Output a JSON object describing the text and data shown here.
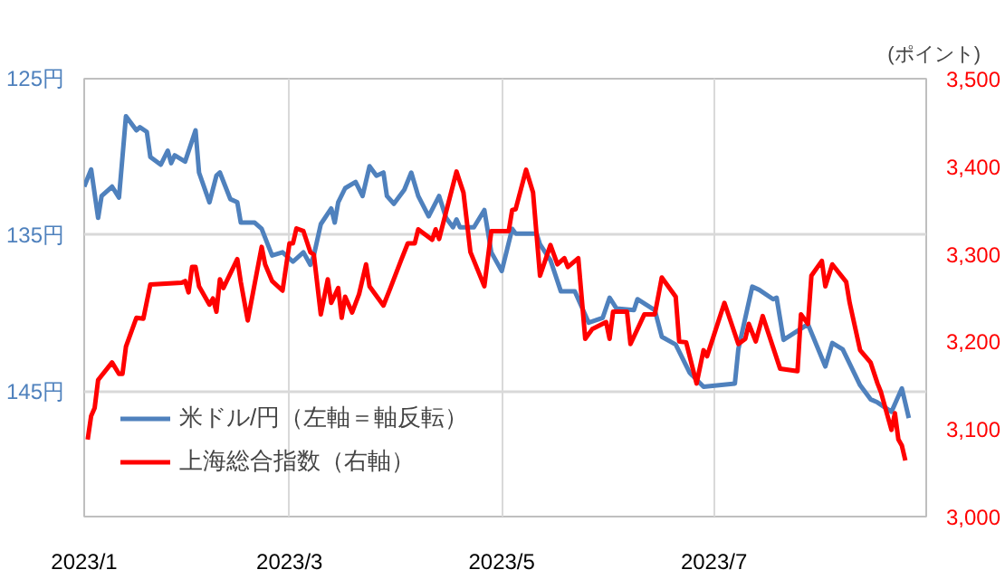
{
  "chart_data": {
    "type": "line",
    "y2label": "(ポイント)",
    "xlim": [
      "2023-01-01",
      "2023-08-31"
    ],
    "xticks": [
      {
        "value": "2023-01",
        "label": "2023/1"
      },
      {
        "value": "2023-03",
        "label": "2023/3"
      },
      {
        "value": "2023-05",
        "label": "2023/5"
      },
      {
        "value": "2023-07",
        "label": "2023/7"
      }
    ],
    "ylim": [
      153,
      125
    ],
    "yticks": [
      {
        "value": 125,
        "label": "125円"
      },
      {
        "value": 135,
        "label": "135円"
      },
      {
        "value": 145,
        "label": "145円"
      }
    ],
    "y2lim": [
      3000,
      3500
    ],
    "y2ticks": [
      {
        "value": 3000,
        "label": "3,000"
      },
      {
        "value": 3100,
        "label": "3,100"
      },
      {
        "value": 3200,
        "label": "3,200"
      },
      {
        "value": 3300,
        "label": "3,300"
      },
      {
        "value": 3400,
        "label": "3,400"
      },
      {
        "value": 3500,
        "label": "3,500"
      }
    ],
    "grid": true,
    "legend": "bottom left",
    "line_style": "solid",
    "marker": "none",
    "series": [
      {
        "name": "米ドル/円（左軸＝軸反転）",
        "color": "#4f81bd",
        "axis": "y",
        "x": [
          "2023-01-01",
          "2023-01-03",
          "2023-01-05",
          "2023-01-06",
          "2023-01-09",
          "2023-01-11",
          "2023-01-13",
          "2023-01-16",
          "2023-01-17",
          "2023-01-19",
          "2023-01-20",
          "2023-01-23",
          "2023-01-25",
          "2023-01-26",
          "2023-01-27",
          "2023-01-30",
          "2023-02-02",
          "2023-02-03",
          "2023-02-06",
          "2023-02-08",
          "2023-02-09",
          "2023-02-12",
          "2023-02-14",
          "2023-02-15",
          "2023-02-19",
          "2023-02-21",
          "2023-02-24",
          "2023-02-27",
          "2023-03-02",
          "2023-03-05",
          "2023-03-07",
          "2023-03-08",
          "2023-03-10",
          "2023-03-13",
          "2023-03-14",
          "2023-03-15",
          "2023-03-17",
          "2023-03-20",
          "2023-03-22",
          "2023-03-24",
          "2023-03-26",
          "2023-03-28",
          "2023-03-29",
          "2023-03-31",
          "2023-04-03",
          "2023-04-05",
          "2023-04-07",
          "2023-04-10",
          "2023-04-13",
          "2023-04-15",
          "2023-04-17",
          "2023-04-18",
          "2023-04-19",
          "2023-04-23",
          "2023-04-26",
          "2023-04-28",
          "2023-05-01",
          "2023-05-04",
          "2023-05-05",
          "2023-05-11",
          "2023-05-12",
          "2023-05-15",
          "2023-05-18",
          "2023-05-22",
          "2023-05-26",
          "2023-05-30",
          "2023-06-01",
          "2023-06-03",
          "2023-06-08",
          "2023-06-09",
          "2023-06-14",
          "2023-06-16",
          "2023-06-20",
          "2023-06-24",
          "2023-06-28",
          "2023-07-07",
          "2023-07-08",
          "2023-07-12",
          "2023-07-14",
          "2023-07-18",
          "2023-07-19",
          "2023-07-21",
          "2023-07-28",
          "2023-08-02",
          "2023-08-04",
          "2023-08-07",
          "2023-08-12",
          "2023-08-15",
          "2023-08-17",
          "2023-08-21",
          "2023-08-24",
          "2023-08-26"
        ],
        "values": [
          131.9,
          130.8,
          133.9,
          132.5,
          131.9,
          132.6,
          127.4,
          128.3,
          128.1,
          128.4,
          130.0,
          130.5,
          129.6,
          130.4,
          129.9,
          130.3,
          128.3,
          131.0,
          132.9,
          131.2,
          131.0,
          132.7,
          132.9,
          134.2,
          134.2,
          134.6,
          136.3,
          136.1,
          136.7,
          136.1,
          136.9,
          136.3,
          134.3,
          133.3,
          134.2,
          132.9,
          132.0,
          131.6,
          132.5,
          130.6,
          131.2,
          131.0,
          132.5,
          133.0,
          132.1,
          131.0,
          132.5,
          133.8,
          132.5,
          133.9,
          134.5,
          134.0,
          134.5,
          134.5,
          133.4,
          136.1,
          137.3,
          134.6,
          134.9,
          134.9,
          135.6,
          136.6,
          138.6,
          138.6,
          140.6,
          140.3,
          139.0,
          139.7,
          139.8,
          139.1,
          139.8,
          141.5,
          142.0,
          143.8,
          144.7,
          144.5,
          142.3,
          138.3,
          138.5,
          139.1,
          139.0,
          141.7,
          140.7,
          143.4,
          141.9,
          142.3,
          144.6,
          145.5,
          145.7,
          146.3,
          144.8,
          146.7
        ]
      },
      {
        "name": "上海総合指数（右軸）",
        "color": "#ff0000",
        "axis": "y2",
        "x": [
          "2023-01-02",
          "2023-01-03",
          "2023-01-04",
          "2023-01-05",
          "2023-01-09",
          "2023-01-11",
          "2023-01-12",
          "2023-01-13",
          "2023-01-16",
          "2023-01-18",
          "2023-01-20",
          "2023-01-29",
          "2023-01-30",
          "2023-01-31",
          "2023-02-01",
          "2023-02-02",
          "2023-02-03",
          "2023-02-06",
          "2023-02-07",
          "2023-02-08",
          "2023-02-09",
          "2023-02-10",
          "2023-02-14",
          "2023-02-15",
          "2023-02-17",
          "2023-02-21",
          "2023-02-22",
          "2023-02-24",
          "2023-02-27",
          "2023-03-01",
          "2023-03-02",
          "2023-03-03",
          "2023-03-05",
          "2023-03-07",
          "2023-03-08",
          "2023-03-10",
          "2023-03-12",
          "2023-03-13",
          "2023-03-15",
          "2023-03-16",
          "2023-03-17",
          "2023-03-19",
          "2023-03-21",
          "2023-03-23",
          "2023-03-24",
          "2023-03-28",
          "2023-03-30",
          "2023-04-02",
          "2023-04-04",
          "2023-04-06",
          "2023-04-07",
          "2023-04-11",
          "2023-04-12",
          "2023-04-13",
          "2023-04-18",
          "2023-04-20",
          "2023-04-22",
          "2023-04-26",
          "2023-04-28",
          "2023-05-01",
          "2023-05-03",
          "2023-05-04",
          "2023-05-05",
          "2023-05-08",
          "2023-05-10",
          "2023-05-12",
          "2023-05-15",
          "2023-05-17",
          "2023-05-19",
          "2023-05-20",
          "2023-05-23",
          "2023-05-25",
          "2023-05-27",
          "2023-05-31",
          "2023-06-01",
          "2023-06-02",
          "2023-06-06",
          "2023-06-07",
          "2023-06-11",
          "2023-06-14",
          "2023-06-16",
          "2023-06-20",
          "2023-06-21",
          "2023-06-23",
          "2023-06-26",
          "2023-06-28",
          "2023-06-29",
          "2023-07-04",
          "2023-07-08",
          "2023-07-10",
          "2023-07-11",
          "2023-07-13",
          "2023-07-15",
          "2023-07-20",
          "2023-07-25",
          "2023-07-26",
          "2023-07-28",
          "2023-07-29",
          "2023-08-01",
          "2023-08-02",
          "2023-08-04",
          "2023-08-08",
          "2023-08-09",
          "2023-08-12",
          "2023-08-15",
          "2023-08-17",
          "2023-08-18",
          "2023-08-21",
          "2023-08-22",
          "2023-08-23",
          "2023-08-24",
          "2023-08-25"
        ],
        "values": [
          3088,
          3115,
          3124,
          3156,
          3176,
          3163,
          3163,
          3194,
          3227,
          3226,
          3265,
          3267,
          3269,
          3256,
          3285,
          3285,
          3263,
          3242,
          3249,
          3234,
          3271,
          3261,
          3294,
          3268,
          3224,
          3308,
          3288,
          3269,
          3258,
          3312,
          3312,
          3329,
          3326,
          3302,
          3299,
          3231,
          3271,
          3244,
          3261,
          3227,
          3251,
          3233,
          3254,
          3288,
          3263,
          3241,
          3261,
          3292,
          3312,
          3312,
          3328,
          3316,
          3328,
          3317,
          3394,
          3370,
          3302,
          3263,
          3326,
          3326,
          3326,
          3350,
          3351,
          3396,
          3370,
          3275,
          3310,
          3288,
          3295,
          3285,
          3295,
          3203,
          3214,
          3222,
          3203,
          3234,
          3234,
          3197,
          3231,
          3231,
          3273,
          3251,
          3200,
          3199,
          3152,
          3190,
          3183,
          3244,
          3197,
          3203,
          3220,
          3200,
          3229,
          3169,
          3166,
          3231,
          3220,
          3275,
          3292,
          3263,
          3288,
          3268,
          3244,
          3190,
          3176,
          3152,
          3142,
          3099,
          3118,
          3088,
          3081,
          3064
        ]
      }
    ]
  }
}
